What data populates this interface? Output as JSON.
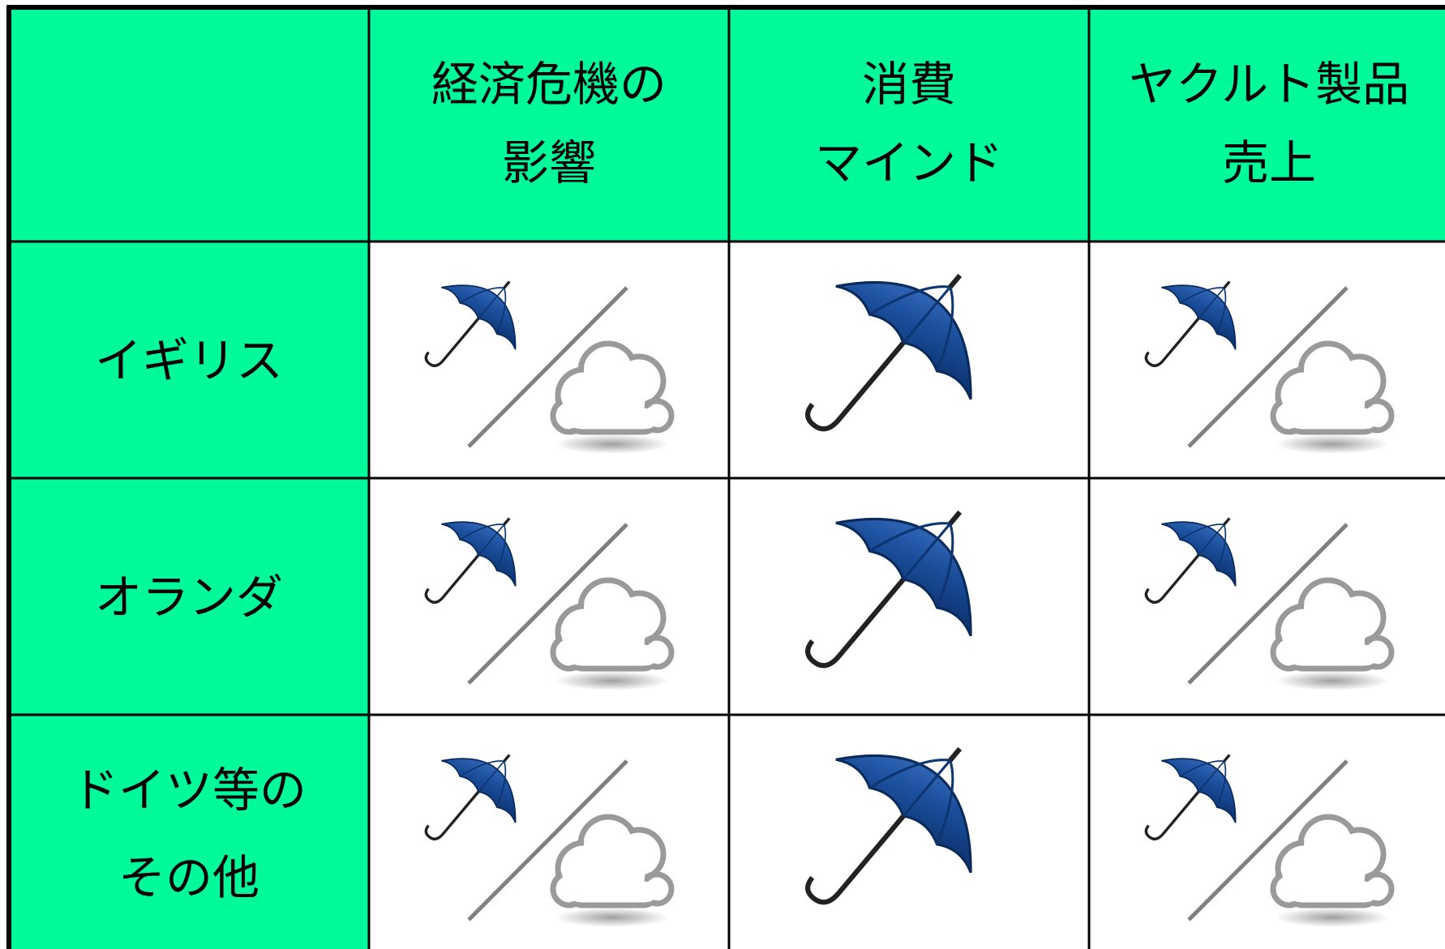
{
  "table": {
    "header": [
      [
        "経済危機の",
        "影響"
      ],
      [
        "消費",
        "マインド"
      ],
      [
        "ヤクルト製品",
        "売上"
      ]
    ],
    "rows": [
      [
        "イギリス"
      ],
      [
        "オランダ"
      ],
      [
        "ドイツ等の",
        "その他"
      ]
    ]
  }
}
